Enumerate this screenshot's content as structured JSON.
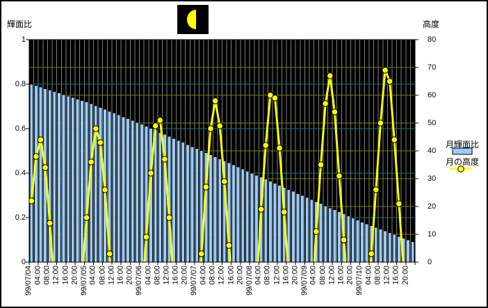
{
  "axes": {
    "left_axis_title": "輝面比",
    "right_axis_title": "高度",
    "left_ticks": [
      "1",
      "0.8",
      "0.6",
      "0.4",
      "0.2",
      "0"
    ],
    "right_ticks": [
      "80",
      "70",
      "60",
      "50",
      "40",
      "30",
      "20",
      "10",
      "0"
    ]
  },
  "legend": {
    "bar_label": "月輝面比",
    "line_label": "月の高度"
  },
  "colors": {
    "bar_fill": "#99CCFF",
    "line": "#FFFF00",
    "plot_background": "#000000",
    "left_gridline": "#008080",
    "right_gridline": "#808000",
    "vertical_gridline": "#808080",
    "moon_icon_bg": "#000000",
    "moon_icon_fill": "#FFFF00"
  },
  "chart_data": {
    "type": "combo",
    "x_start": "99/07/04 00:00",
    "x_step_hours": 2,
    "x_count": 84,
    "x_labels": [
      "99/07/04",
      "04:00",
      "08:00",
      "12:00",
      "16:00",
      "20:00",
      "99/07/05",
      "04:00",
      "08:00",
      "12:00",
      "16:00",
      "20:00",
      "99/07/06",
      "04:00",
      "08:00",
      "12:00",
      "16:00",
      "20:00",
      "99/07/07",
      "04:00",
      "08:00",
      "12:00",
      "16:00",
      "20:00",
      "99/07/08",
      "04:00",
      "08:00",
      "12:00",
      "16:00",
      "20:00",
      "99/07/09",
      "04:00",
      "08:00",
      "12:00",
      "16:00",
      "20:00",
      "99/07/10",
      "04:00",
      "08:00",
      "12:00",
      "16:00",
      "20:00"
    ],
    "left_axis": {
      "title": "輝面比",
      "min": 0,
      "max": 1,
      "step": 0.2
    },
    "right_axis": {
      "title": "高度",
      "min": 0,
      "max": 80,
      "step": 10
    },
    "legend_position": "right",
    "grid": true,
    "series": [
      {
        "name": "月輝面比",
        "type": "bar",
        "axis": "left",
        "color": "#99CCFF",
        "values": [
          0.8,
          0.793,
          0.787,
          0.78,
          0.773,
          0.767,
          0.76,
          0.753,
          0.747,
          0.74,
          0.733,
          0.727,
          0.72,
          0.712,
          0.703,
          0.695,
          0.687,
          0.678,
          0.67,
          0.662,
          0.653,
          0.645,
          0.637,
          0.628,
          0.62,
          0.611,
          0.602,
          0.593,
          0.583,
          0.574,
          0.565,
          0.556,
          0.547,
          0.538,
          0.528,
          0.519,
          0.51,
          0.501,
          0.492,
          0.483,
          0.473,
          0.464,
          0.455,
          0.446,
          0.437,
          0.428,
          0.418,
          0.409,
          0.4,
          0.391,
          0.382,
          0.373,
          0.363,
          0.354,
          0.345,
          0.336,
          0.327,
          0.318,
          0.308,
          0.299,
          0.29,
          0.281,
          0.272,
          0.263,
          0.253,
          0.244,
          0.235,
          0.226,
          0.217,
          0.208,
          0.198,
          0.189,
          0.18,
          0.172,
          0.164,
          0.156,
          0.148,
          0.14,
          0.132,
          0.124,
          0.116,
          0.108,
          0.1,
          0.092
        ]
      },
      {
        "name": "月の高度",
        "type": "line",
        "axis": "right",
        "color": "#FFFF00",
        "marker": "circle",
        "values": [
          22,
          38,
          44,
          34,
          14,
          -10,
          null,
          null,
          null,
          null,
          null,
          -5,
          16,
          36,
          48,
          43,
          26,
          3,
          -20,
          null,
          null,
          null,
          null,
          null,
          -12,
          9,
          32,
          49,
          51,
          37,
          16,
          -8,
          null,
          null,
          null,
          null,
          -12,
          3,
          27,
          48,
          58,
          49,
          29,
          6,
          -15,
          null,
          null,
          null,
          null,
          -10,
          19,
          42,
          60,
          59,
          41,
          18,
          -5,
          null,
          null,
          null,
          null,
          -15,
          11,
          35,
          57,
          67,
          54,
          31,
          8,
          -15,
          null,
          null,
          null,
          -18,
          3,
          26,
          50,
          69,
          65,
          44,
          21,
          -2,
          null,
          null
        ]
      }
    ]
  }
}
